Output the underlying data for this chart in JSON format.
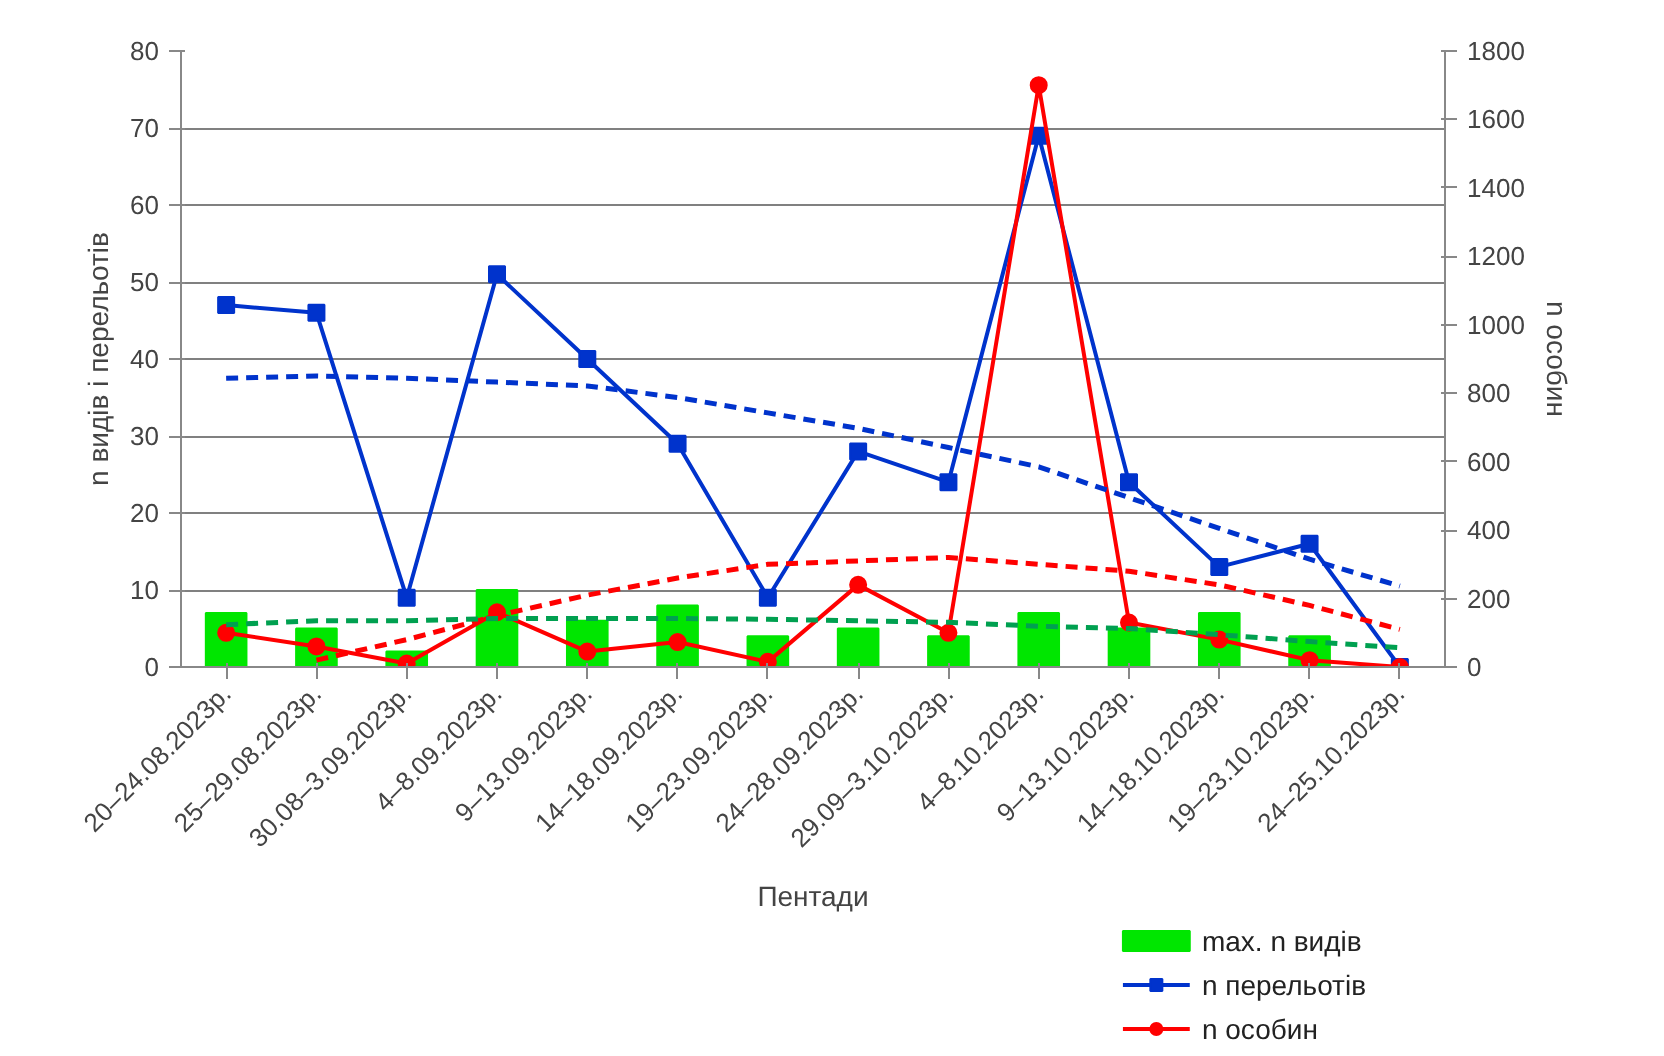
{
  "chart_data": {
    "type": "bar",
    "xlabel": "Пентади",
    "ylabel": "n видів і перельотів",
    "y2label": "n особин",
    "categories": [
      "20–24.08.2023р.",
      "25–29.08.2023р.",
      "30.08–3.09.2023р.",
      "4–8.09.2023р.",
      "9–13.09.2023р.",
      "14–18.09.2023р.",
      "19–23.09.2023р.",
      "24–28.09.2023р.",
      "29.09–3.10.2023р.",
      "4–8.10.2023р.",
      "9–13.10.2023р.",
      "14–18.10.2023р.",
      "19–23.10.2023р.",
      "24–25.10.2023р."
    ],
    "ylim": [
      0,
      80
    ],
    "yticks": [
      0,
      10,
      20,
      30,
      40,
      50,
      60,
      70,
      80
    ],
    "y2lim": [
      0,
      1800
    ],
    "y2ticks": [
      0,
      200,
      400,
      600,
      800,
      1000,
      1200,
      1400,
      1600,
      1800
    ],
    "grid": "y",
    "legend": "bottom right",
    "series": [
      {
        "name": "max. n видів",
        "color": "#00e600",
        "values": [
          7,
          5,
          2,
          10,
          6,
          8,
          4,
          5,
          4,
          7,
          5,
          7,
          4,
          0
        ]
      },
      {
        "name": "n перельотів",
        "type": "line",
        "color": "#0033cc",
        "marker": "square",
        "line_style": "solid",
        "values": [
          47,
          46,
          9,
          51,
          40,
          29,
          9,
          28,
          24,
          69,
          24,
          13,
          16,
          0
        ]
      },
      {
        "name": "n особин",
        "type": "line",
        "axis": "y2",
        "color": "#ff0000",
        "marker": "circle",
        "line_style": "solid",
        "values": [
          100,
          60,
          10,
          160,
          45,
          73,
          15,
          240,
          100,
          1700,
          130,
          80,
          20,
          0
        ]
      },
      {
        "type": "line",
        "color": "#0033cc",
        "marker": "none",
        "line_style": "dashed",
        "values": [
          37.5,
          37.8,
          37.5,
          37,
          36.5,
          35,
          33,
          31,
          28.5,
          26,
          22,
          18,
          14,
          10.5
        ]
      },
      {
        "type": "line",
        "axis": "y2",
        "color": "#ff0000",
        "marker": "none",
        "line_style": "dashed",
        "values": [
          null,
          20,
          80,
          150,
          210,
          260,
          300,
          310,
          320,
          300,
          280,
          240,
          180,
          110
        ]
      },
      {
        "type": "line",
        "color": "#00a050",
        "marker": "none",
        "line_style": "dashed",
        "values": [
          5.5,
          6,
          6,
          6.3,
          6.3,
          6.3,
          6.2,
          6,
          5.8,
          5.3,
          5,
          4.2,
          3.3,
          2.5
        ]
      }
    ]
  }
}
